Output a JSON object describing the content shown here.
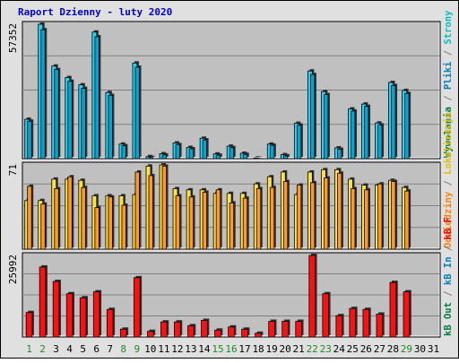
{
  "chart_data": {
    "type": "bar",
    "title": "Raport Dzienny -  luty 2020",
    "colors": {
      "frame": "#e0e0e0",
      "plot_bg": "#c0c0c0",
      "grid": "#808080",
      "title": "#0000cc",
      "tick_weekday": "#000000",
      "tick_weekend": "#228822",
      "hits_bar": "#1ad7ff",
      "files_bar": "#00a5d0",
      "pages_bar": "#ffe23a",
      "visits_bar": "#ff9a1a",
      "kb_bar": "#ff1010"
    },
    "categories": [
      "1",
      "2",
      "3",
      "4",
      "5",
      "6",
      "7",
      "8",
      "9",
      "10",
      "11",
      "12",
      "13",
      "14",
      "15",
      "16",
      "17",
      "18",
      "19",
      "20",
      "21",
      "22",
      "23",
      "24",
      "25",
      "26",
      "27",
      "28",
      "29",
      "30",
      "31"
    ],
    "weekend_days": [
      "1",
      "2",
      "8",
      "9",
      "15",
      "16",
      "22",
      "23",
      "29"
    ],
    "panels": [
      {
        "id": "hits",
        "ymax_label": "57352",
        "ylim": [
          0,
          57352
        ],
        "right_labels": [
          {
            "text": "Wywołania",
            "color": "#008040"
          },
          {
            "text": " / ",
            "color": "#808080"
          },
          {
            "text": "Pliki",
            "color": "#0080c0"
          },
          {
            "text": " / ",
            "color": "#808080"
          },
          {
            "text": "Strony",
            "color": "#00c0c0"
          }
        ],
        "series": [
          {
            "name": "Wywołania",
            "color_key": "hits_bar",
            "values": [
              16800,
              57352,
              39500,
              34600,
              31500,
              54000,
              28200,
              6200,
              40800,
              900,
              2100,
              6700,
              4800,
              8700,
              2000,
              5300,
              2300,
              300,
              6200,
              1700,
              15100,
              37400,
              28600,
              4600,
              21200,
              23300,
              15200,
              32500,
              29100,
              0,
              0
            ]
          },
          {
            "name": "Pliki",
            "color_key": "files_bar",
            "values": [
              16000,
              55000,
              38000,
              33000,
              30000,
              52000,
              27000,
              5500,
              39000,
              500,
              1600,
              6000,
              4200,
              8000,
              1500,
              4700,
              1800,
              100,
              5700,
              1200,
              14300,
              35900,
              27300,
              4000,
              20300,
              22300,
              14400,
              31200,
              27800,
              0,
              0
            ]
          }
        ]
      },
      {
        "id": "visits",
        "ymax_label": "71",
        "ylim": [
          0,
          71
        ],
        "right_labels": [
          {
            "text": "Odwiedziny",
            "color": "#ff8000"
          },
          {
            "text": " / ",
            "color": "#808080"
          },
          {
            "text": "Lokalizacje",
            "color": "#e0c000"
          }
        ],
        "series": [
          {
            "name": "Lokalizacje",
            "color_key": "pages_bar",
            "values": [
              41,
              41,
              59,
              59,
              58,
              45,
              45,
              45,
              46,
              70,
              71,
              51,
              50,
              50,
              47,
              47,
              47,
              55,
              61,
              65,
              46,
              65,
              67,
              67,
              59,
              54,
              54,
              58,
              52,
              0,
              0
            ]
          },
          {
            "name": "Odwiedziny",
            "color_key": "visits_bar",
            "values": [
              53,
              38,
              51,
              61,
              52,
              35,
              44,
              37,
              65,
              62,
              70,
              45,
              44,
              48,
              50,
              39,
              43,
              51,
              52,
              57,
              54,
              56,
              60,
              64,
              51,
              50,
              55,
              57,
              49,
              0,
              0
            ]
          }
        ]
      },
      {
        "id": "kb",
        "ymax_label": "25992",
        "ylim": [
          0,
          25992
        ],
        "right_labels": [
          {
            "text": "kB Out",
            "color": "#008040"
          },
          {
            "text": " / ",
            "color": "#808080"
          },
          {
            "text": "kB In",
            "color": "#0080c0"
          },
          {
            "text": " / ",
            "color": "#808080"
          },
          {
            "text": "kB F",
            "color": "#ff0000"
          }
        ],
        "series": [
          {
            "name": "kB F",
            "color_key": "kb_bar",
            "values": [
              7800,
              22300,
              17700,
              13800,
              12500,
              14400,
              8800,
              2500,
              18900,
              1800,
              4800,
              4800,
              3600,
              5300,
              2200,
              3200,
              2500,
              1200,
              5000,
              5000,
              5000,
              25992,
              13800,
              6800,
              9100,
              8800,
              7300,
              17400,
              14400,
              0,
              0
            ]
          }
        ]
      }
    ]
  }
}
